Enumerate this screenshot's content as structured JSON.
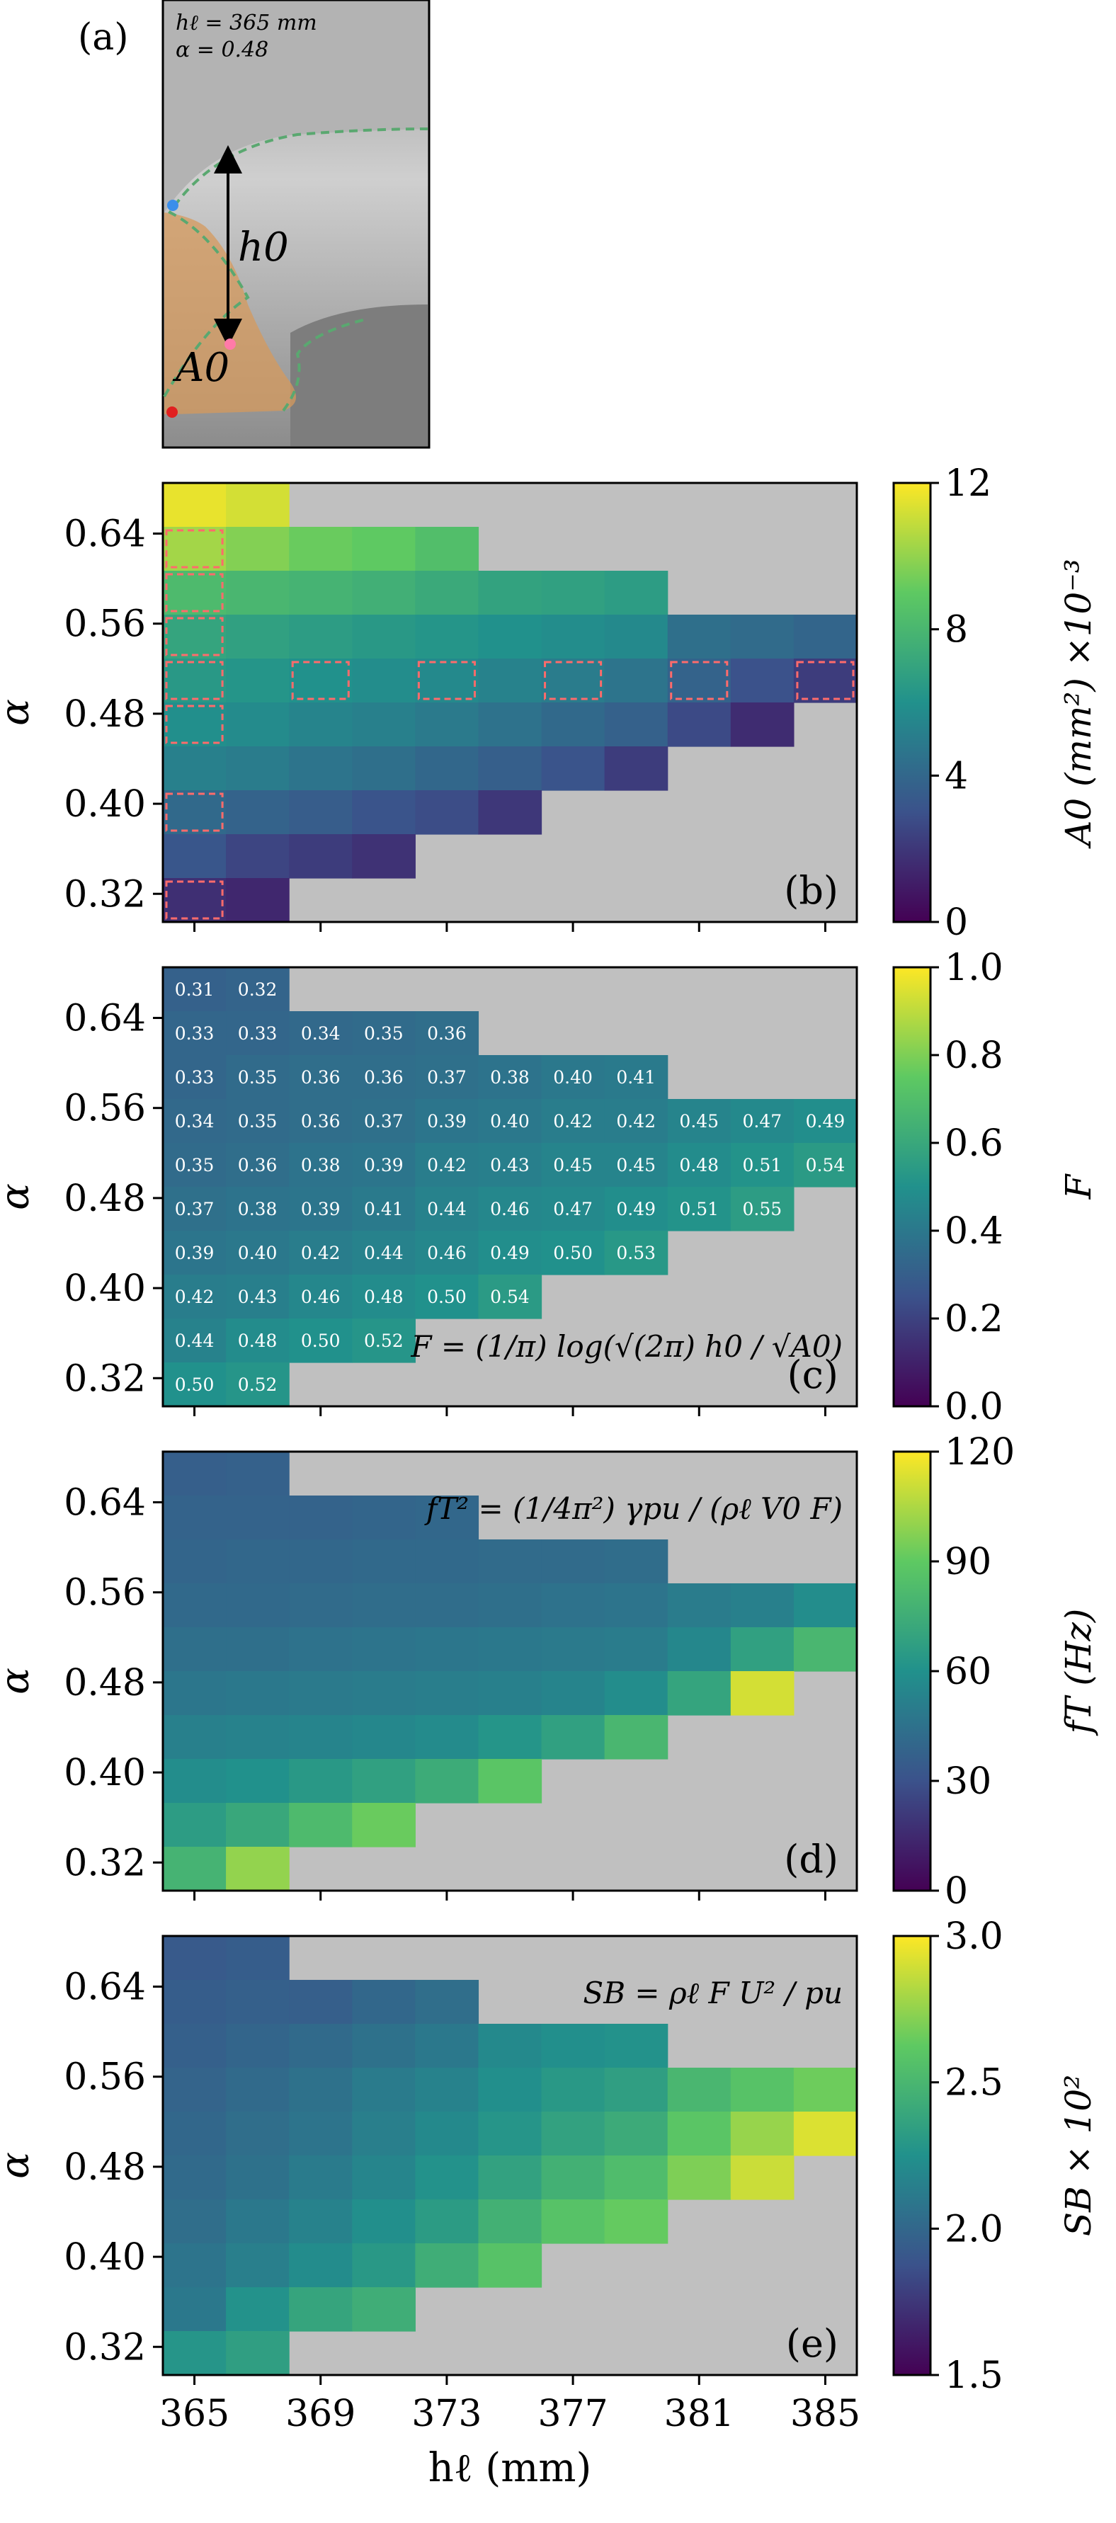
{
  "figure": {
    "shared_x": {
      "label": "hℓ (mm)",
      "ticks": [
        "365",
        "369",
        "373",
        "377",
        "381",
        "385"
      ]
    },
    "y_ticks": [
      "0.64",
      "0.56",
      "0.48",
      "0.40",
      "0.32"
    ],
    "y_label": "α",
    "colormap": [
      "#440154",
      "#3b528b",
      "#21918c",
      "#5ec962",
      "#fde725"
    ],
    "missing_color": "#c0c0c0",
    "highlight_color": "#ff6b6b"
  },
  "panel_a": {
    "panel_label": "(a)",
    "info_line1": "hℓ = 365 mm",
    "info_line2": "α = 0.48",
    "arrow_label": "h0",
    "area_label": "A0"
  },
  "chart_data": [
    {
      "type": "heatmap",
      "panel": "(b)",
      "x": [
        365,
        367,
        369,
        371,
        373,
        375,
        377,
        379,
        381,
        383,
        385
      ],
      "y": [
        0.66,
        0.64,
        0.6,
        0.56,
        0.52,
        0.48,
        0.44,
        0.4,
        0.36,
        0.32
      ],
      "xlabel": "hℓ (mm)",
      "ylabel": "α",
      "colorbar_label": "A0 (mm²) ×10⁻³",
      "colorbar_ticks": [
        "0",
        "4",
        "8",
        "12"
      ],
      "zlim": [
        0,
        12
      ],
      "values": [
        [
          11.6,
          11.2,
          null,
          null,
          null,
          null,
          null,
          null,
          null,
          null,
          null
        ],
        [
          10.3,
          9.7,
          9.2,
          9.0,
          8.4,
          null,
          null,
          null,
          null,
          null,
          null
        ],
        [
          8.2,
          8.0,
          7.8,
          7.6,
          7.3,
          6.9,
          6.8,
          6.6,
          null,
          null,
          null
        ],
        [
          7.0,
          6.8,
          6.6,
          6.4,
          6.2,
          6.0,
          5.8,
          5.6,
          4.4,
          4.2,
          3.9
        ],
        [
          6.4,
          6.2,
          6.0,
          5.8,
          5.6,
          5.3,
          5.0,
          4.6,
          3.8,
          3.0,
          2.2
        ],
        [
          5.9,
          5.7,
          5.4,
          5.2,
          4.9,
          4.5,
          4.1,
          3.7,
          2.7,
          1.6,
          null
        ],
        [
          5.2,
          5.0,
          4.6,
          4.4,
          4.0,
          3.6,
          3.1,
          2.2,
          null,
          null,
          null
        ],
        [
          4.1,
          3.8,
          3.5,
          3.1,
          2.8,
          2.0,
          null,
          null,
          null,
          null,
          null
        ],
        [
          3.2,
          2.5,
          2.2,
          1.8,
          null,
          null,
          null,
          null,
          null,
          null,
          null
        ],
        [
          1.7,
          1.4,
          null,
          null,
          null,
          null,
          null,
          null,
          null,
          null,
          null
        ]
      ],
      "highlighted": [
        [
          1,
          0
        ],
        [
          2,
          0
        ],
        [
          3,
          0
        ],
        [
          4,
          0
        ],
        [
          5,
          0
        ],
        [
          7,
          0
        ],
        [
          9,
          0
        ],
        [
          4,
          2
        ],
        [
          4,
          4
        ],
        [
          4,
          6
        ],
        [
          4,
          8
        ],
        [
          4,
          10
        ]
      ]
    },
    {
      "type": "heatmap",
      "panel": "(c)",
      "x": [
        365,
        367,
        369,
        371,
        373,
        375,
        377,
        379,
        381,
        383,
        385
      ],
      "y": [
        0.66,
        0.62,
        0.58,
        0.54,
        0.5,
        0.46,
        0.42,
        0.38,
        0.34,
        0.3
      ],
      "xlabel": "hℓ (mm)",
      "ylabel": "α",
      "colorbar_label": "F",
      "colorbar_ticks": [
        "0.0",
        "0.2",
        "0.4",
        "0.6",
        "0.8",
        "1.0"
      ],
      "zlim": [
        0,
        1
      ],
      "formula": "F = (1/π) log(√(2π) h0 / √A0)",
      "values": [
        [
          0.31,
          0.32,
          null,
          null,
          null,
          null,
          null,
          null,
          null,
          null,
          null
        ],
        [
          0.33,
          0.33,
          0.34,
          0.35,
          0.36,
          null,
          null,
          null,
          null,
          null,
          null
        ],
        [
          0.33,
          0.35,
          0.36,
          0.36,
          0.37,
          0.38,
          0.4,
          0.41,
          null,
          null,
          null
        ],
        [
          0.34,
          0.35,
          0.36,
          0.37,
          0.39,
          0.4,
          0.42,
          0.42,
          0.45,
          0.47,
          0.49
        ],
        [
          0.35,
          0.36,
          0.38,
          0.39,
          0.42,
          0.43,
          0.45,
          0.45,
          0.48,
          0.51,
          0.54
        ],
        [
          0.37,
          0.38,
          0.39,
          0.41,
          0.44,
          0.46,
          0.47,
          0.49,
          0.51,
          0.55,
          null
        ],
        [
          0.39,
          0.4,
          0.42,
          0.44,
          0.46,
          0.49,
          0.5,
          0.53,
          null,
          null,
          null
        ],
        [
          0.42,
          0.43,
          0.46,
          0.48,
          0.5,
          0.54,
          null,
          null,
          null,
          null,
          null
        ],
        [
          0.44,
          0.48,
          0.5,
          0.52,
          null,
          null,
          null,
          null,
          null,
          null,
          null
        ],
        [
          0.5,
          0.52,
          null,
          null,
          null,
          null,
          null,
          null,
          null,
          null,
          null
        ]
      ]
    },
    {
      "type": "heatmap",
      "panel": "(d)",
      "x": [
        365,
        367,
        369,
        371,
        373,
        375,
        377,
        379,
        381,
        383,
        385
      ],
      "y": [
        0.66,
        0.64,
        0.6,
        0.56,
        0.52,
        0.48,
        0.44,
        0.4,
        0.36,
        0.32
      ],
      "xlabel": "hℓ (mm)",
      "ylabel": "α",
      "colorbar_label": "fT (Hz)",
      "colorbar_ticks": [
        "0",
        "30",
        "60",
        "90",
        "120"
      ],
      "zlim": [
        0,
        120
      ],
      "formula": "fT² = (1/4π²) γpu / (ρℓ V0 F)",
      "values": [
        [
          36,
          37,
          null,
          null,
          null,
          null,
          null,
          null,
          null,
          null,
          null
        ],
        [
          38,
          38,
          38,
          39,
          40,
          null,
          null,
          null,
          null,
          null,
          null
        ],
        [
          39,
          40,
          40,
          41,
          41,
          42,
          42,
          43,
          null,
          null,
          null
        ],
        [
          41,
          41,
          42,
          43,
          43,
          44,
          45,
          46,
          50,
          52,
          58
        ],
        [
          44,
          44,
          45,
          46,
          47,
          48,
          49,
          50,
          55,
          68,
          80
        ],
        [
          47,
          48,
          49,
          50,
          51,
          52,
          54,
          58,
          70,
          112,
          null
        ],
        [
          52,
          53,
          54,
          55,
          57,
          62,
          68,
          80,
          null,
          null,
          null
        ],
        [
          58,
          60,
          64,
          68,
          74,
          88,
          null,
          null,
          null,
          null,
          null
        ],
        [
          66,
          72,
          82,
          92,
          null,
          null,
          null,
          null,
          null,
          null,
          null
        ],
        [
          78,
          100,
          null,
          null,
          null,
          null,
          null,
          null,
          null,
          null,
          null
        ]
      ]
    },
    {
      "type": "heatmap",
      "panel": "(e)",
      "x": [
        365,
        367,
        369,
        371,
        373,
        375,
        377,
        379,
        381,
        383,
        385
      ],
      "y": [
        0.66,
        0.64,
        0.6,
        0.56,
        0.52,
        0.48,
        0.44,
        0.4,
        0.36,
        0.32
      ],
      "xlabel": "hℓ (mm)",
      "ylabel": "α",
      "colorbar_label": "SB × 10²",
      "colorbar_ticks": [
        "1.5",
        "2.0",
        "2.5",
        "3.0"
      ],
      "zlim": [
        1.5,
        3.0
      ],
      "formula": "SB = ρℓ F U² / pu",
      "values": [
        [
          1.92,
          1.94,
          null,
          null,
          null,
          null,
          null,
          null,
          null,
          null,
          null
        ],
        [
          1.94,
          1.96,
          1.95,
          2.0,
          2.04,
          null,
          null,
          null,
          null,
          null,
          null
        ],
        [
          1.96,
          1.99,
          2.02,
          2.06,
          2.1,
          2.2,
          2.24,
          2.26,
          null,
          null,
          null
        ],
        [
          1.98,
          2.02,
          2.06,
          2.12,
          2.16,
          2.24,
          2.3,
          2.34,
          2.5,
          2.58,
          2.66
        ],
        [
          2.0,
          2.04,
          2.08,
          2.14,
          2.2,
          2.28,
          2.36,
          2.42,
          2.6,
          2.76,
          2.92
        ],
        [
          2.02,
          2.06,
          2.12,
          2.18,
          2.26,
          2.36,
          2.46,
          2.54,
          2.7,
          2.88,
          null
        ],
        [
          2.04,
          2.1,
          2.16,
          2.24,
          2.32,
          2.46,
          2.58,
          2.64,
          null,
          null,
          null
        ],
        [
          2.08,
          2.14,
          2.22,
          2.3,
          2.44,
          2.58,
          null,
          null,
          null,
          null,
          null
        ],
        [
          2.1,
          2.26,
          2.38,
          2.44,
          null,
          null,
          null,
          null,
          null,
          null,
          null
        ],
        [
          2.28,
          2.34,
          null,
          null,
          null,
          null,
          null,
          null,
          null,
          null,
          null
        ]
      ]
    }
  ]
}
